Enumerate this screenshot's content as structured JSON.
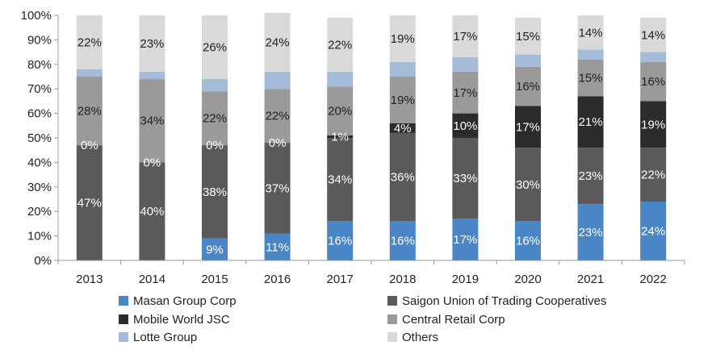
{
  "chart_data": {
    "type": "bar",
    "stacked": true,
    "normalized": true,
    "categories": [
      "2013",
      "2014",
      "2015",
      "2016",
      "2017",
      "2018",
      "2019",
      "2020",
      "2021",
      "2022"
    ],
    "ylim": [
      0,
      100
    ],
    "yticks": [
      "0%",
      "10%",
      "20%",
      "30%",
      "40%",
      "50%",
      "60%",
      "70%",
      "80%",
      "90%",
      "100%"
    ],
    "grid": false,
    "legend_position": "bottom",
    "series": [
      {
        "name": "Masan Group Corp",
        "color": "#4a86c5",
        "label_color": "#ffffff",
        "values": [
          0,
          0,
          9,
          11,
          16,
          16,
          17,
          16,
          23,
          24
        ],
        "labels": [
          "",
          "",
          "9%",
          "11%",
          "16%",
          "16%",
          "17%",
          "16%",
          "23%",
          "24%"
        ]
      },
      {
        "name": "Saigon Union of Trading Cooperatives",
        "color": "#5a5a5a",
        "label_color": "#ffffff",
        "values": [
          47,
          40,
          38,
          37,
          34,
          36,
          33,
          30,
          23,
          22
        ],
        "labels": [
          "47%",
          "40%",
          "38%",
          "37%",
          "34%",
          "36%",
          "33%",
          "30%",
          "23%",
          "22%"
        ]
      },
      {
        "name": "Mobile World JSC",
        "color": "#2b2b2b",
        "label_color": "#ffffff",
        "values": [
          0,
          0,
          0,
          0,
          1,
          4,
          10,
          17,
          21,
          19
        ],
        "labels": [
          "0%",
          "0%",
          "0%",
          "0%",
          "1%",
          "4%",
          "10%",
          "17%",
          "21%",
          "19%"
        ]
      },
      {
        "name": "Central Retail Corp",
        "color": "#9a9a9a",
        "label_color": "#222222",
        "values": [
          28,
          34,
          22,
          22,
          20,
          19,
          17,
          16,
          15,
          16
        ],
        "labels": [
          "28%",
          "34%",
          "22%",
          "22%",
          "20%",
          "19%",
          "17%",
          "16%",
          "15%",
          "16%"
        ]
      },
      {
        "name": "Lotte Group",
        "color": "#a4bcd9",
        "label_color": "#222222",
        "values": [
          3,
          3,
          5,
          7,
          6,
          6,
          6,
          5,
          4,
          4
        ],
        "labels": [
          "",
          "",
          "",
          "",
          "",
          "",
          "",
          "",
          "",
          ""
        ]
      },
      {
        "name": "Others",
        "color": "#d9d9d9",
        "label_color": "#222222",
        "values": [
          22,
          23,
          26,
          24,
          22,
          19,
          17,
          15,
          14,
          14
        ],
        "labels": [
          "22%",
          "23%",
          "26%",
          "24%",
          "22%",
          "19%",
          "17%",
          "15%",
          "14%",
          "14%"
        ]
      }
    ],
    "legend_order": [
      "Masan Group Corp",
      "Saigon Union of Trading Cooperatives",
      "Mobile World JSC",
      "Central Retail Corp",
      "Lotte Group",
      "Others"
    ]
  }
}
